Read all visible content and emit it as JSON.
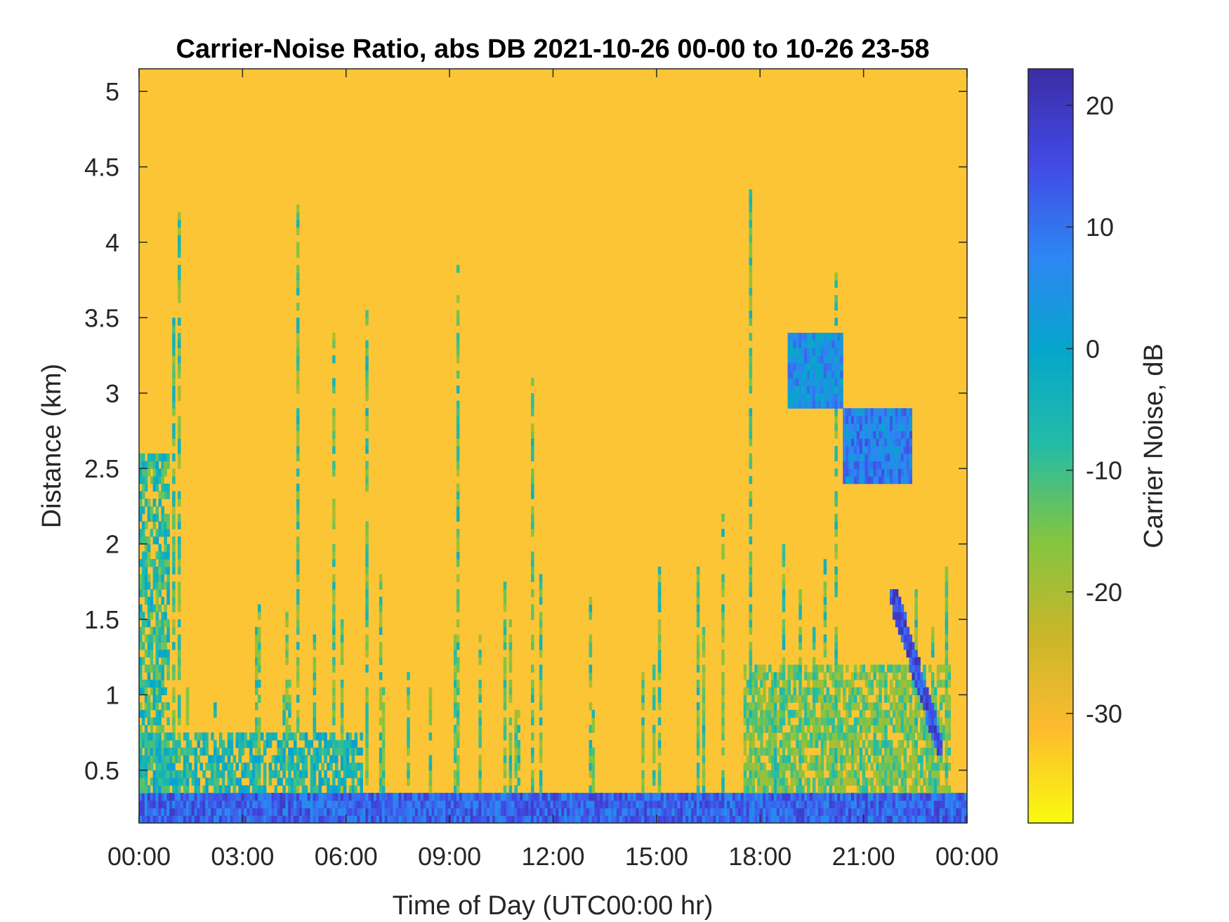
{
  "chart_data": {
    "type": "heatmap",
    "title": "Carrier-Noise Ratio, abs DB 2021-10-26 00-00 to 10-26 23-58",
    "xlabel": "Time of Day (UTC00:00 hr)",
    "ylabel": "Distance (km)",
    "x_ticks": [
      "00:00",
      "03:00",
      "06:00",
      "09:00",
      "12:00",
      "15:00",
      "18:00",
      "21:00",
      "00:00"
    ],
    "xlim_hours": [
      0,
      24
    ],
    "y_ticks": [
      0.5,
      1,
      1.5,
      2,
      2.5,
      3,
      3.5,
      4,
      4.5,
      5
    ],
    "ylim": [
      0.15,
      5.15
    ],
    "colorbar": {
      "label": "Carrier Noise, dB",
      "ticks": [
        20,
        10,
        0,
        -10,
        -20,
        -30
      ],
      "clim": [
        -39,
        23
      ],
      "colormap": "parula-reversed",
      "colors_low_to_high": [
        "#f9fb0e",
        "#fdbb2e",
        "#c9b62a",
        "#83c540",
        "#24bca5",
        "#05a6cb",
        "#2d86f3",
        "#4249e5",
        "#3b2da5"
      ]
    },
    "background_value_db": -32,
    "features": [
      {
        "description": "near-ground layer",
        "time_range_h": [
          0,
          24
        ],
        "distance_km": [
          0.15,
          0.35
        ],
        "value_db": 12
      },
      {
        "description": "boundary layer",
        "time_range_h": [
          0,
          6.5
        ],
        "distance_km": [
          0.35,
          0.75
        ],
        "value_db": -5
      },
      {
        "description": "cloud layer",
        "time_range_h": [
          18.8,
          20.4
        ],
        "distance_km": [
          2.9,
          3.4
        ],
        "value_db": 5
      },
      {
        "description": "cloud layer",
        "time_range_h": [
          20.4,
          22.4
        ],
        "distance_km": [
          2.4,
          2.9
        ],
        "value_db": 8
      },
      {
        "description": "descending layer",
        "time_range_h": [
          21.8,
          23.3
        ],
        "distance_km": [
          0.6,
          1.7
        ],
        "value_db": 15
      }
    ]
  }
}
